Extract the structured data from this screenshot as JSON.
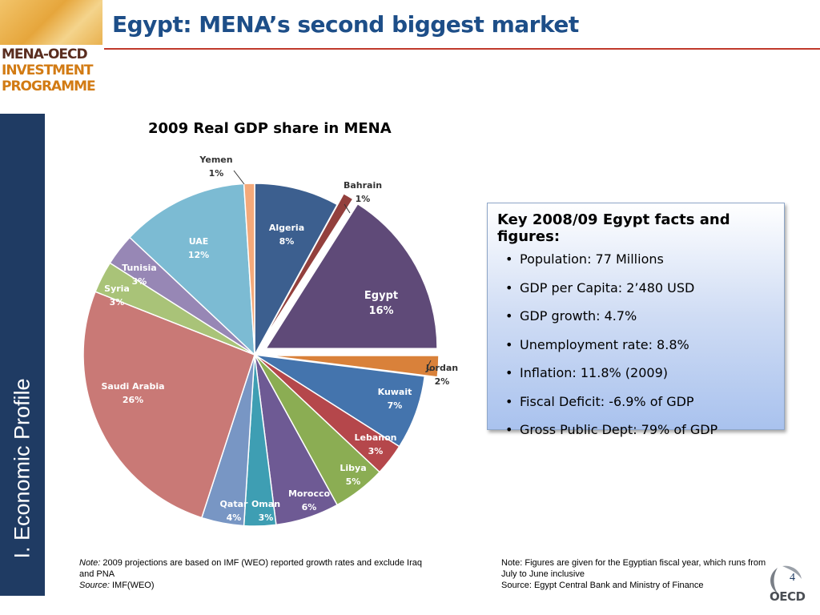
{
  "header": {
    "title": "Egypt: MENA’s second biggest market",
    "logo_line1": "MENA-OECD",
    "logo_line2": "INVESTMENT",
    "logo_line3": "PROGRAMME"
  },
  "sidebar": {
    "section_label": "I. Economic Profile"
  },
  "chart_data": {
    "type": "pie",
    "title": "2009 Real GDP share in MENA",
    "slices": [
      {
        "label": "Algeria",
        "percent": 8,
        "color": "#3c5f8f"
      },
      {
        "label": "Bahrain",
        "percent": 1,
        "color": "#93403d",
        "exploded": true
      },
      {
        "label": "Egypt",
        "percent": 16,
        "color": "#5f4a78",
        "exploded": true
      },
      {
        "label": "Jordan",
        "percent": 2,
        "color": "#d9813a",
        "exploded": true
      },
      {
        "label": "Kuwait",
        "percent": 7,
        "color": "#4474ad"
      },
      {
        "label": "Lebanon",
        "percent": 3,
        "color": "#b5474b"
      },
      {
        "label": "Libya",
        "percent": 5,
        "color": "#8bad53"
      },
      {
        "label": "Morocco",
        "percent": 6,
        "color": "#6e5a94"
      },
      {
        "label": "Oman",
        "percent": 3,
        "color": "#3e9eb3"
      },
      {
        "label": "Qatar",
        "percent": 4,
        "color": "#7896c4"
      },
      {
        "label": "Saudi Arabia",
        "percent": 26,
        "color": "#c97976"
      },
      {
        "label": "Syria",
        "percent": 3,
        "color": "#a9c378"
      },
      {
        "label": "Tunisia",
        "percent": 3,
        "color": "#9787b5"
      },
      {
        "label": "UAE",
        "percent": 12,
        "color": "#7cbbd3"
      },
      {
        "label": "Yemen",
        "percent": 1,
        "color": "#f4a97a"
      }
    ]
  },
  "facts": {
    "title": "Key 2008/09 Egypt facts and figures:",
    "items": [
      "Population: 77 Millions",
      "GDP per Capita: 2’480 USD",
      "GDP growth: 4.7%",
      "Unemployment rate: 8.8%",
      "Inflation: 11.8% (2009)",
      "Fiscal Deficit: -6.9% of GDP",
      "Gross Public Dept: 79%  of  GDP"
    ]
  },
  "footer": {
    "note_label": "Note:",
    "note_text": " 2009 projections are based on IMF (WEO) reported growth rates and exclude Iraq and PNA",
    "source_label": "Source:",
    "source_text": " IMF(WEO)",
    "right_note": "Note: Figures are given for the Egyptian fiscal year, which runs from July to June inclusive",
    "right_source": "Source: Egypt Central Bank and Ministry of Finance",
    "page_number": "4",
    "oecd": "OECD"
  }
}
